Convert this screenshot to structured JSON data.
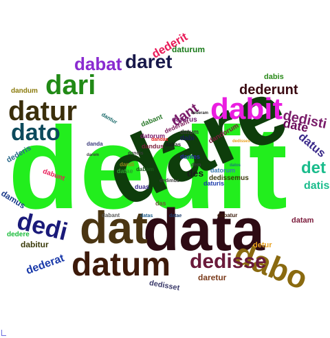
{
  "words": [
    {
      "text": "dedit",
      "color": "#22ee1d"
    },
    {
      "text": "dare",
      "color": "#0e3d0b"
    },
    {
      "text": "data",
      "color": "#2e0b14"
    },
    {
      "text": "dat",
      "color": "#4a3512"
    },
    {
      "text": "datum",
      "color": "#3d1a0a"
    },
    {
      "text": "dabit",
      "color": "#ea1ee0"
    },
    {
      "text": "datur",
      "color": "#3a2e0b"
    },
    {
      "text": "dari",
      "color": "#218a16"
    },
    {
      "text": "dato",
      "color": "#0d4a5c"
    },
    {
      "text": "daret",
      "color": "#18184a"
    },
    {
      "text": "dabat",
      "color": "#8a2bd0"
    },
    {
      "text": "dabo",
      "color": "#8a6a10"
    },
    {
      "text": "dedi",
      "color": "#1a1a7a"
    },
    {
      "text": "dedisse",
      "color": "#6a1a3a"
    },
    {
      "text": "dederunt",
      "color": "#3a0a12"
    },
    {
      "text": "dedisti",
      "color": "#7a1d6a"
    },
    {
      "text": "date",
      "color": "#6a0a5a"
    },
    {
      "text": "datus",
      "color": "#3a2a8a"
    },
    {
      "text": "det",
      "color": "#1abc8c"
    },
    {
      "text": "datis",
      "color": "#1abc8c"
    },
    {
      "text": "dederit",
      "color": "#e81b58"
    },
    {
      "text": "daturum",
      "color": "#1a7a1a"
    },
    {
      "text": "dabis",
      "color": "#2a8a1a"
    },
    {
      "text": "dandum",
      "color": "#8a7a0a"
    },
    {
      "text": "dederis",
      "color": "#2a6a8a"
    },
    {
      "text": "dabunt",
      "color": "#e81b58"
    },
    {
      "text": "damus",
      "color": "#1a3a8a"
    },
    {
      "text": "dedere",
      "color": "#1abc3a"
    },
    {
      "text": "dabitur",
      "color": "#3a3a0a"
    },
    {
      "text": "dederat",
      "color": "#1a3aaa"
    },
    {
      "text": "datam",
      "color": "#7a1a3a"
    },
    {
      "text": "detur",
      "color": "#e8a01b"
    },
    {
      "text": "daretur",
      "color": "#7a3a1a"
    },
    {
      "text": "dedisset",
      "color": "#3a3a6a"
    },
    {
      "text": "dabant",
      "color": "#5a5a5a"
    },
    {
      "text": "datas",
      "color": "#1a5a8a"
    },
    {
      "text": "datae",
      "color": "#1a3a6a"
    },
    {
      "text": "dabatur",
      "color": "#3a1a0a"
    },
    {
      "text": "dedissemus",
      "color": "#3a3a0a"
    },
    {
      "text": "des",
      "color": "#1a1a1a"
    },
    {
      "text": "dem",
      "color": "#3a3a3a"
    },
    {
      "text": "datorum",
      "color": "#3a7ab0"
    },
    {
      "text": "daturis",
      "color": "#1a3aaa"
    },
    {
      "text": "duas",
      "color": "#3a2a8a"
    },
    {
      "text": "dandi",
      "color": "#9a8a1a"
    },
    {
      "text": "das",
      "color": "#6a5a3a"
    },
    {
      "text": "dabant",
      "color": "#2a7a2a"
    },
    {
      "text": "daturus",
      "color": "#6a1a6a"
    },
    {
      "text": "dabi",
      "color": "#1a1a5a"
    },
    {
      "text": "datum",
      "color": "#3a3a3a"
    },
    {
      "text": "dantur",
      "color": "#1a6a6a"
    },
    {
      "text": "darem",
      "color": "#3a3a3a"
    },
    {
      "text": "danda",
      "color": "#3a3a7a"
    },
    {
      "text": "dederant",
      "color": "#7a1a5a"
    },
    {
      "text": "dandorum",
      "color": "#7a1a3a"
    },
    {
      "text": "datorum",
      "color": "#7a1a6a"
    },
    {
      "text": "dant",
      "color": "#7a1d6a"
    },
    {
      "text": "dedisses",
      "color": "#e8a01b"
    },
    {
      "text": "dabas",
      "color": "#1a1a1a"
    },
    {
      "text": "dandis",
      "color": "#3a3a3a"
    },
    {
      "text": "datae",
      "color": "#2aa02a"
    },
    {
      "text": "dabam",
      "color": "#1a5a1a"
    },
    {
      "text": "dedimus",
      "color": "#3a3a3a"
    },
    {
      "text": "dantes",
      "color": "#2a2aa0"
    },
    {
      "text": "dandus",
      "color": "#7a1d3a"
    },
    {
      "text": "dederam",
      "color": "#2a2a2a"
    },
    {
      "text": "dandas",
      "color": "#e8201b"
    },
    {
      "text": "datos",
      "color": "#1a7a7a"
    }
  ]
}
